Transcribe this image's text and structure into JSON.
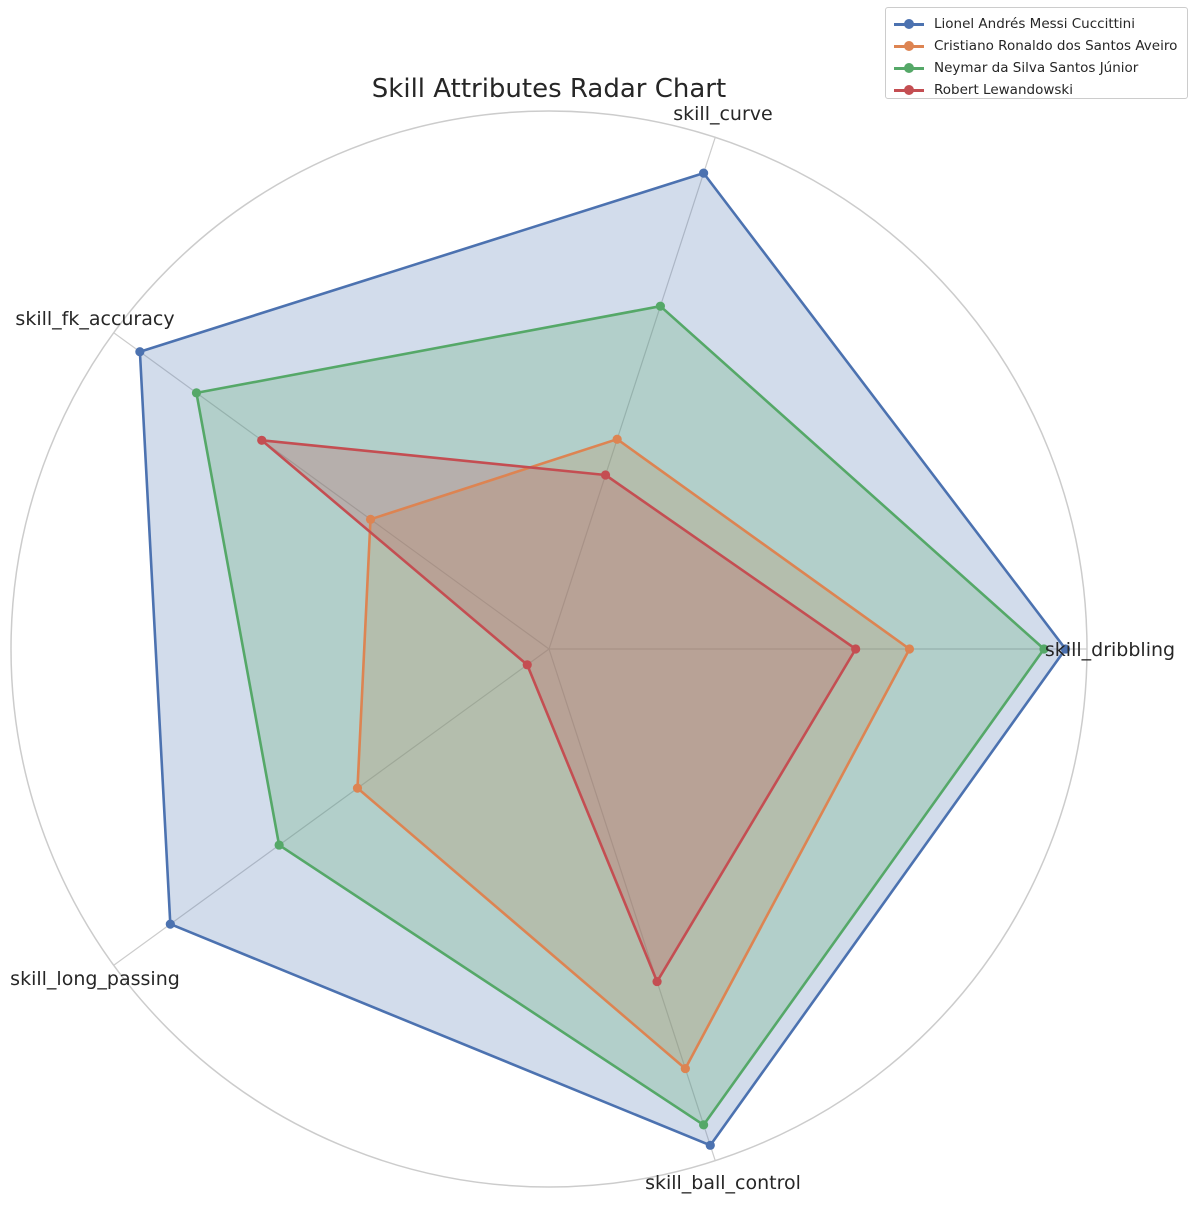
{
  "chart_data": {
    "type": "radar",
    "title": "Skill Attributes Radar Chart",
    "axes": [
      "skill_dribbling",
      "skill_curve",
      "skill_fk_accuracy",
      "skill_long_passing",
      "skill_ball_control"
    ],
    "rmax": 100,
    "grid": true,
    "legend_position": "top-right",
    "series": [
      {
        "name": "Lionel Andrés Messi Cuccittini",
        "color": "#4c72b0",
        "values": [
          96,
          93,
          94,
          87,
          97
        ]
      },
      {
        "name": "Cristiano Ronaldo dos Santos Aveiro",
        "color": "#dd8452",
        "values": [
          67,
          41,
          41,
          44,
          82
        ]
      },
      {
        "name": "Neymar da Silva Santos Júnior",
        "color": "#55a868",
        "values": [
          92,
          67,
          81,
          62,
          93
        ]
      },
      {
        "name": "Robert Lewandowski",
        "color": "#c44e52",
        "values": [
          57,
          34,
          66,
          5,
          65
        ]
      }
    ]
  }
}
